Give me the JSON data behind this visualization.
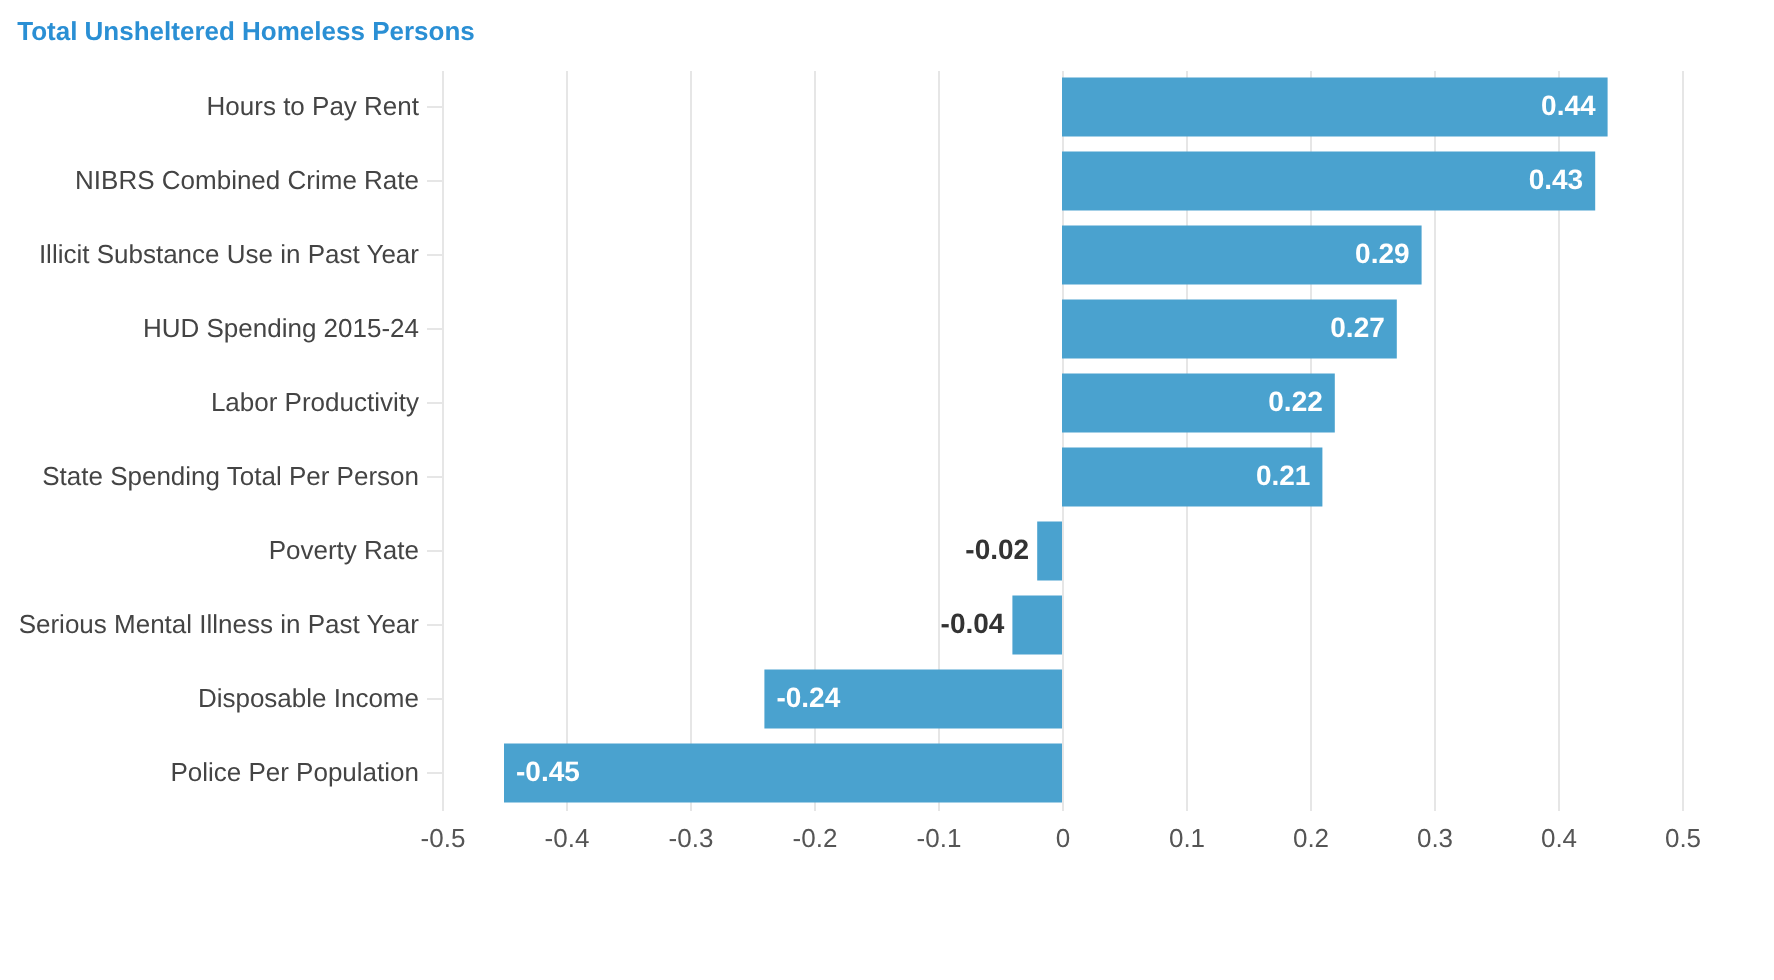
{
  "chart_data": {
    "type": "bar",
    "orientation": "horizontal",
    "title": "Total Unsheltered Homeless Persons",
    "categories": [
      "Hours to Pay Rent",
      "NIBRS Combined Crime Rate",
      "Illicit Substance Use in Past Year",
      "HUD Spending 2015-24",
      "Labor Productivity",
      "State Spending Total Per Person",
      "Poverty Rate",
      "Serious Mental Illness in Past Year",
      "Disposable Income",
      "Police Per Population"
    ],
    "values": [
      0.44,
      0.43,
      0.29,
      0.27,
      0.22,
      0.21,
      -0.02,
      -0.04,
      -0.24,
      -0.45
    ],
    "color": "#4aa2cf",
    "xlim": [
      -0.5,
      0.5
    ],
    "xticks": [
      -0.5,
      -0.4,
      -0.3,
      -0.2,
      -0.1,
      0,
      0.1,
      0.2,
      0.3,
      0.4,
      0.5
    ],
    "grid": "x",
    "data_labels": true
  }
}
